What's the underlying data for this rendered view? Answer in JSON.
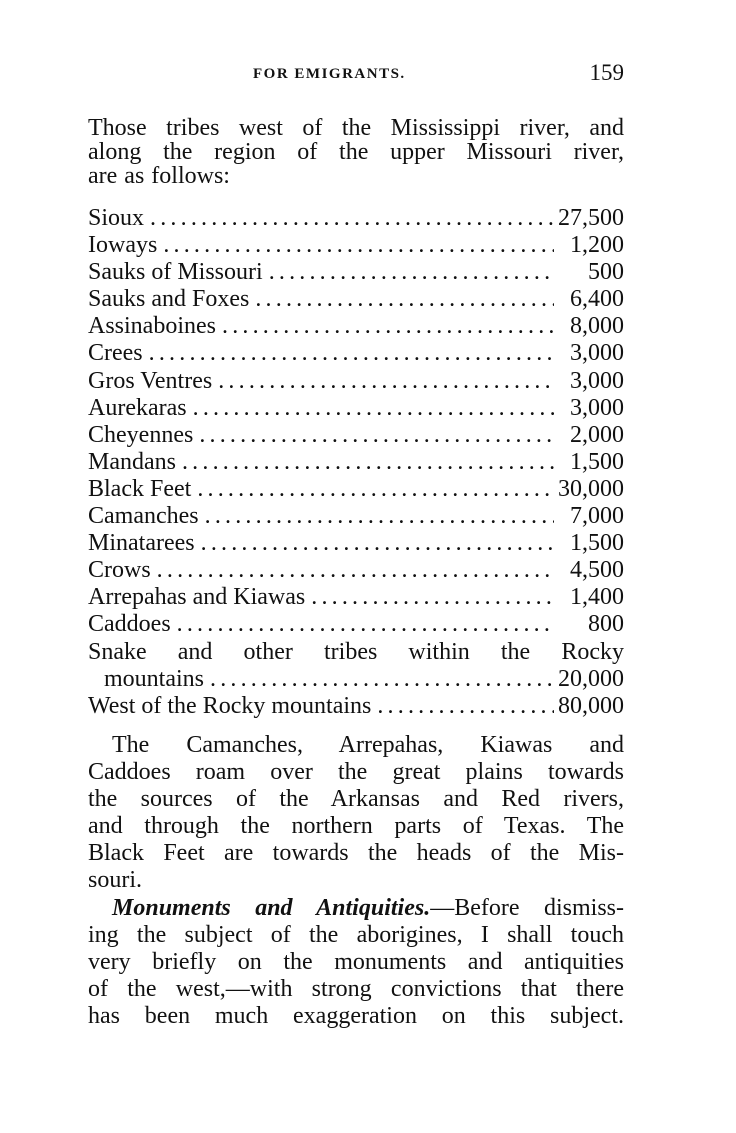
{
  "header": {
    "running_title": "FOR EMIGRANTS.",
    "page_number": "159"
  },
  "intro_lines": [
    "Those tribes west of the Mississippi river, and",
    "along the region of the upper Missouri river,",
    "are as follows:"
  ],
  "tribes": [
    {
      "name": "Sioux",
      "population": "27,500"
    },
    {
      "name": "Ioways",
      "population": "1,200"
    },
    {
      "name": "Sauks of Missouri",
      "population": "500"
    },
    {
      "name": "Sauks and Foxes",
      "population": "6,400"
    },
    {
      "name": "Assinaboines",
      "population": "8,000"
    },
    {
      "name": "Crees",
      "population": "3,000"
    },
    {
      "name": "Gros Ventres",
      "population": "3,000"
    },
    {
      "name": "Aurekaras",
      "population": "3,000"
    },
    {
      "name": "Cheyennes",
      "population": "2,000"
    },
    {
      "name": "Mandans",
      "population": "1,500"
    },
    {
      "name": "Black Feet",
      "population": "30,000"
    },
    {
      "name": "Camanches",
      "population": "7,000"
    },
    {
      "name": "Minatarees",
      "population": "1,500"
    },
    {
      "name": "Crows",
      "population": "4,500"
    },
    {
      "name": "Arrepahas and Kiawas",
      "population": "1,400"
    },
    {
      "name": "Caddoes",
      "population": "800"
    }
  ],
  "snake_entry": {
    "line1": "Snake and other tribes within the Rocky",
    "line2": "mountains",
    "population": "20,000"
  },
  "west_entry": {
    "name": "West of the Rocky mountains",
    "population": "80,000"
  },
  "paragraph1_lines": [
    "The Camanches, Arrepahas, Kiawas and",
    "Caddoes roam over the great plains towards",
    "the sources of the Arkansas and Red rivers,",
    "and through the northern parts of Texas. The",
    "Black Feet are towards the heads of the Mis-",
    "souri."
  ],
  "paragraph2": {
    "heading": "Monuments and Antiquities.",
    "first_line_rest": "—Before dismiss-",
    "lines": [
      "ing the subject of the aborigines, I shall touch",
      "very briefly on the monuments and antiquities",
      "of the west,—with strong convictions that there",
      "has been much exaggeration on this subject."
    ]
  },
  "leader": "......................................................"
}
